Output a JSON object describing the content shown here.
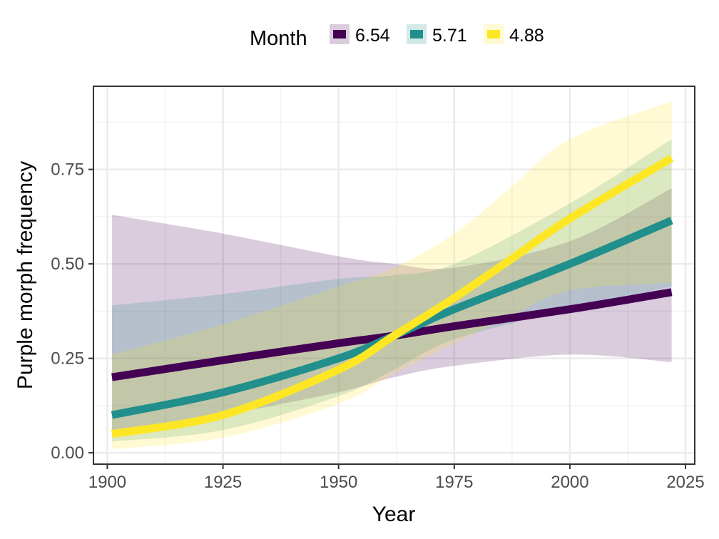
{
  "chart_data": {
    "type": "line",
    "xlabel": "Year",
    "ylabel": "Purple morph frequency",
    "xlim": [
      1897,
      2027
    ],
    "ylim": [
      -0.03,
      0.97
    ],
    "x_ticks": [
      1900,
      1925,
      1950,
      1975,
      2000,
      2025
    ],
    "x_tick_labels": [
      "1900",
      "1925",
      "1950",
      "1975",
      "2000",
      "2025"
    ],
    "y_ticks": [
      0,
      0.25,
      0.5,
      0.75
    ],
    "y_tick_labels": [
      "0.00",
      "0.25",
      "0.50",
      "0.75"
    ],
    "grid": true,
    "legend": {
      "title": "Month",
      "position": "top"
    },
    "series": [
      {
        "name": "6.54",
        "color": "#440154",
        "x": [
          1901,
          1925,
          1950,
          1962,
          1975,
          2000,
          2022
        ],
        "y": [
          0.2,
          0.245,
          0.29,
          0.31,
          0.335,
          0.38,
          0.425
        ],
        "lower": [
          0.05,
          0.1,
          0.16,
          0.2,
          0.23,
          0.26,
          0.24
        ],
        "upper": [
          0.63,
          0.58,
          0.52,
          0.5,
          0.49,
          0.56,
          0.7
        ]
      },
      {
        "name": "5.71",
        "color": "#21908C",
        "x": [
          1901,
          1925,
          1950,
          1962,
          1975,
          2000,
          2022
        ],
        "y": [
          0.1,
          0.16,
          0.25,
          0.31,
          0.38,
          0.5,
          0.615
        ],
        "lower": [
          0.03,
          0.06,
          0.15,
          0.22,
          0.3,
          0.38,
          0.44
        ],
        "upper": [
          0.39,
          0.42,
          0.46,
          0.47,
          0.5,
          0.66,
          0.83
        ]
      },
      {
        "name": "4.88",
        "color": "#FDE725",
        "x": [
          1901,
          1925,
          1950,
          1962,
          1975,
          1987,
          2000,
          2022
        ],
        "y": [
          0.05,
          0.1,
          0.22,
          0.31,
          0.41,
          0.51,
          0.62,
          0.78
        ],
        "lower": [
          0.01,
          0.04,
          0.13,
          0.21,
          0.29,
          0.36,
          0.43,
          0.45
        ],
        "upper": [
          0.26,
          0.34,
          0.44,
          0.49,
          0.58,
          0.7,
          0.83,
          0.93
        ]
      }
    ]
  }
}
